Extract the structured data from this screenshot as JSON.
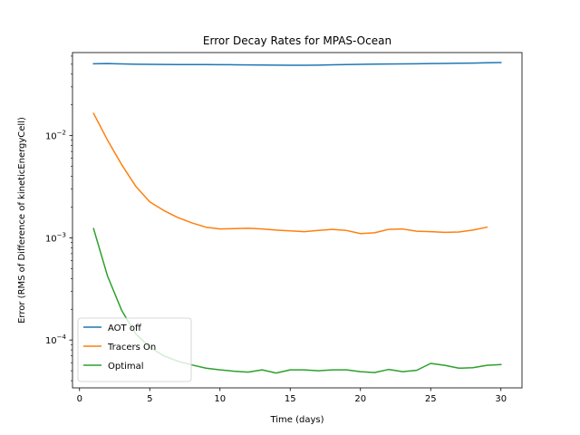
{
  "chart_data": {
    "type": "line",
    "title": "Error Decay Rates for MPAS-Ocean",
    "xlabel": "Time (days)",
    "ylabel": "Error (RMS of Difference of kineticEnergyCell)",
    "yscale": "log",
    "xlim": [
      -0.5,
      31.5
    ],
    "ylim": [
      3.4e-05,
      0.065
    ],
    "xticks": [
      0,
      5,
      10,
      15,
      20,
      25,
      30
    ],
    "yticks": [
      {
        "value": 0.01,
        "base": "10",
        "exp": "−2"
      },
      {
        "value": 0.001,
        "base": "10",
        "exp": "−3"
      },
      {
        "value": 0.0001,
        "base": "10",
        "exp": "−4"
      }
    ],
    "legend_position": "lower-left",
    "series": [
      {
        "name": "AOT off",
        "color": "#1f77b4",
        "x": [
          1,
          2,
          3,
          4,
          5,
          6,
          7,
          8,
          9,
          10,
          11,
          12,
          13,
          14,
          15,
          16,
          17,
          18,
          19,
          20,
          21,
          22,
          23,
          24,
          25,
          26,
          27,
          28,
          29,
          30
        ],
        "values": [
          0.0505,
          0.0507,
          0.0503,
          0.05,
          0.0498,
          0.0497,
          0.0496,
          0.0496,
          0.0496,
          0.0495,
          0.0494,
          0.0492,
          0.0491,
          0.049,
          0.0489,
          0.0489,
          0.049,
          0.0493,
          0.0496,
          0.0499,
          0.0501,
          0.0502,
          0.0503,
          0.0505,
          0.0507,
          0.0509,
          0.0511,
          0.0513,
          0.0516,
          0.0519
        ]
      },
      {
        "name": "Tracers On",
        "color": "#ff7f0e",
        "x": [
          1,
          2,
          3,
          4,
          5,
          6,
          7,
          8,
          9,
          10,
          11,
          12,
          13,
          14,
          15,
          16,
          17,
          18,
          19,
          20,
          21,
          22,
          23,
          24,
          25,
          26,
          27,
          28,
          29
        ],
        "values": [
          0.0165,
          0.009,
          0.0052,
          0.0032,
          0.00225,
          0.00185,
          0.00158,
          0.0014,
          0.00127,
          0.00122,
          0.00123,
          0.00124,
          0.00122,
          0.00119,
          0.00117,
          0.00115,
          0.00118,
          0.00121,
          0.00118,
          0.0011,
          0.00112,
          0.00121,
          0.00122,
          0.00116,
          0.00115,
          0.00113,
          0.00114,
          0.00119,
          0.00127
        ]
      },
      {
        "name": "Optimal",
        "color": "#2ca02c",
        "x": [
          1,
          2,
          3,
          4,
          5,
          6,
          7,
          8,
          9,
          10,
          11,
          12,
          13,
          14,
          15,
          16,
          17,
          18,
          19,
          20,
          21,
          22,
          23,
          24,
          25,
          26,
          27,
          28,
          29,
          30
        ],
        "values": [
          0.00123,
          0.00042,
          0.000195,
          0.000115,
          8.5e-05,
          7e-05,
          6.2e-05,
          5.7e-05,
          5.3e-05,
          5.1e-05,
          4.95e-05,
          4.85e-05,
          5.1e-05,
          4.75e-05,
          5.1e-05,
          5.1e-05,
          5e-05,
          5.1e-05,
          5.1e-05,
          4.9e-05,
          4.8e-05,
          5.15e-05,
          4.9e-05,
          5.05e-05,
          5.9e-05,
          5.65e-05,
          5.3e-05,
          5.35e-05,
          5.65e-05,
          5.75e-05
        ]
      }
    ]
  }
}
